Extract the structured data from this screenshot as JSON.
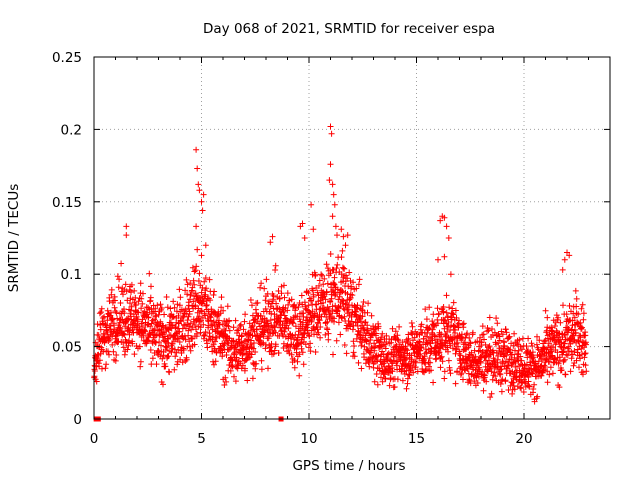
{
  "chart_data": {
    "type": "scatter",
    "title": "Day 068 of 2021, SRMTID for receiver espa",
    "xlabel": "GPS time / hours",
    "ylabel": "SRMTID / TECUs",
    "xlim": [
      0,
      24
    ],
    "ylim": [
      0,
      0.25
    ],
    "grid": true,
    "x_ticks": [
      0,
      5,
      10,
      15,
      20
    ],
    "x_tick_labels": [
      "0",
      "5",
      "10",
      "15",
      "20"
    ],
    "y_ticks": [
      0,
      0.05,
      0.1,
      0.15,
      0.2,
      0.25
    ],
    "y_tick_labels": [
      "0",
      "0.05",
      "0.1",
      "0.15",
      "0.2",
      "0.25"
    ],
    "marker": "plus",
    "color": "#ff0000",
    "data_range_x": [
      0,
      22.9
    ],
    "baseline_markers_x": [
      0.1,
      0.2,
      8.7
    ],
    "envelope": [
      {
        "x": 0.0,
        "mean": 0.04,
        "spread": 0.012
      },
      {
        "x": 0.5,
        "mean": 0.06,
        "spread": 0.018
      },
      {
        "x": 1.0,
        "mean": 0.07,
        "spread": 0.02
      },
      {
        "x": 2.0,
        "mean": 0.07,
        "spread": 0.02
      },
      {
        "x": 3.0,
        "mean": 0.055,
        "spread": 0.02
      },
      {
        "x": 4.0,
        "mean": 0.06,
        "spread": 0.02
      },
      {
        "x": 4.8,
        "mean": 0.08,
        "spread": 0.025
      },
      {
        "x": 5.5,
        "mean": 0.065,
        "spread": 0.02
      },
      {
        "x": 6.5,
        "mean": 0.045,
        "spread": 0.018
      },
      {
        "x": 7.5,
        "mean": 0.06,
        "spread": 0.02
      },
      {
        "x": 8.5,
        "mean": 0.07,
        "spread": 0.02
      },
      {
        "x": 9.5,
        "mean": 0.06,
        "spread": 0.02
      },
      {
        "x": 10.5,
        "mean": 0.08,
        "spread": 0.02
      },
      {
        "x": 11.5,
        "mean": 0.085,
        "spread": 0.025
      },
      {
        "x": 12.5,
        "mean": 0.06,
        "spread": 0.018
      },
      {
        "x": 13.5,
        "mean": 0.04,
        "spread": 0.015
      },
      {
        "x": 14.5,
        "mean": 0.045,
        "spread": 0.015
      },
      {
        "x": 15.5,
        "mean": 0.05,
        "spread": 0.018
      },
      {
        "x": 16.5,
        "mean": 0.06,
        "spread": 0.02
      },
      {
        "x": 17.5,
        "mean": 0.04,
        "spread": 0.015
      },
      {
        "x": 18.5,
        "mean": 0.045,
        "spread": 0.018
      },
      {
        "x": 19.5,
        "mean": 0.04,
        "spread": 0.015
      },
      {
        "x": 20.5,
        "mean": 0.035,
        "spread": 0.015
      },
      {
        "x": 21.5,
        "mean": 0.05,
        "spread": 0.018
      },
      {
        "x": 22.5,
        "mean": 0.06,
        "spread": 0.02
      },
      {
        "x": 22.9,
        "mean": 0.05,
        "spread": 0.018
      }
    ],
    "notable_points": [
      {
        "x": 1.5,
        "y": 0.133
      },
      {
        "x": 1.5,
        "y": 0.127
      },
      {
        "x": 4.75,
        "y": 0.186
      },
      {
        "x": 4.8,
        "y": 0.173
      },
      {
        "x": 4.85,
        "y": 0.162
      },
      {
        "x": 4.9,
        "y": 0.158
      },
      {
        "x": 5.0,
        "y": 0.15
      },
      {
        "x": 5.05,
        "y": 0.144
      },
      {
        "x": 5.1,
        "y": 0.155
      },
      {
        "x": 4.75,
        "y": 0.133
      },
      {
        "x": 4.8,
        "y": 0.117
      },
      {
        "x": 5.0,
        "y": 0.113
      },
      {
        "x": 5.2,
        "y": 0.12
      },
      {
        "x": 8.3,
        "y": 0.126
      },
      {
        "x": 8.2,
        "y": 0.122
      },
      {
        "x": 9.6,
        "y": 0.133
      },
      {
        "x": 9.7,
        "y": 0.135
      },
      {
        "x": 9.8,
        "y": 0.125
      },
      {
        "x": 10.1,
        "y": 0.148
      },
      {
        "x": 10.2,
        "y": 0.131
      },
      {
        "x": 11.0,
        "y": 0.202
      },
      {
        "x": 11.05,
        "y": 0.197
      },
      {
        "x": 11.0,
        "y": 0.176
      },
      {
        "x": 10.95,
        "y": 0.165
      },
      {
        "x": 11.1,
        "y": 0.162
      },
      {
        "x": 11.15,
        "y": 0.155
      },
      {
        "x": 11.2,
        "y": 0.148
      },
      {
        "x": 11.1,
        "y": 0.14
      },
      {
        "x": 11.25,
        "y": 0.133
      },
      {
        "x": 11.3,
        "y": 0.127
      },
      {
        "x": 11.5,
        "y": 0.131
      },
      {
        "x": 11.6,
        "y": 0.126
      },
      {
        "x": 11.7,
        "y": 0.12
      },
      {
        "x": 11.8,
        "y": 0.127
      },
      {
        "x": 16.1,
        "y": 0.137
      },
      {
        "x": 16.2,
        "y": 0.14
      },
      {
        "x": 16.3,
        "y": 0.139
      },
      {
        "x": 16.4,
        "y": 0.133
      },
      {
        "x": 16.5,
        "y": 0.125
      },
      {
        "x": 16.0,
        "y": 0.11
      },
      {
        "x": 16.6,
        "y": 0.1
      },
      {
        "x": 16.3,
        "y": 0.112
      },
      {
        "x": 22.0,
        "y": 0.115
      },
      {
        "x": 22.1,
        "y": 0.113
      },
      {
        "x": 21.9,
        "y": 0.11
      },
      {
        "x": 21.8,
        "y": 0.103
      }
    ]
  }
}
